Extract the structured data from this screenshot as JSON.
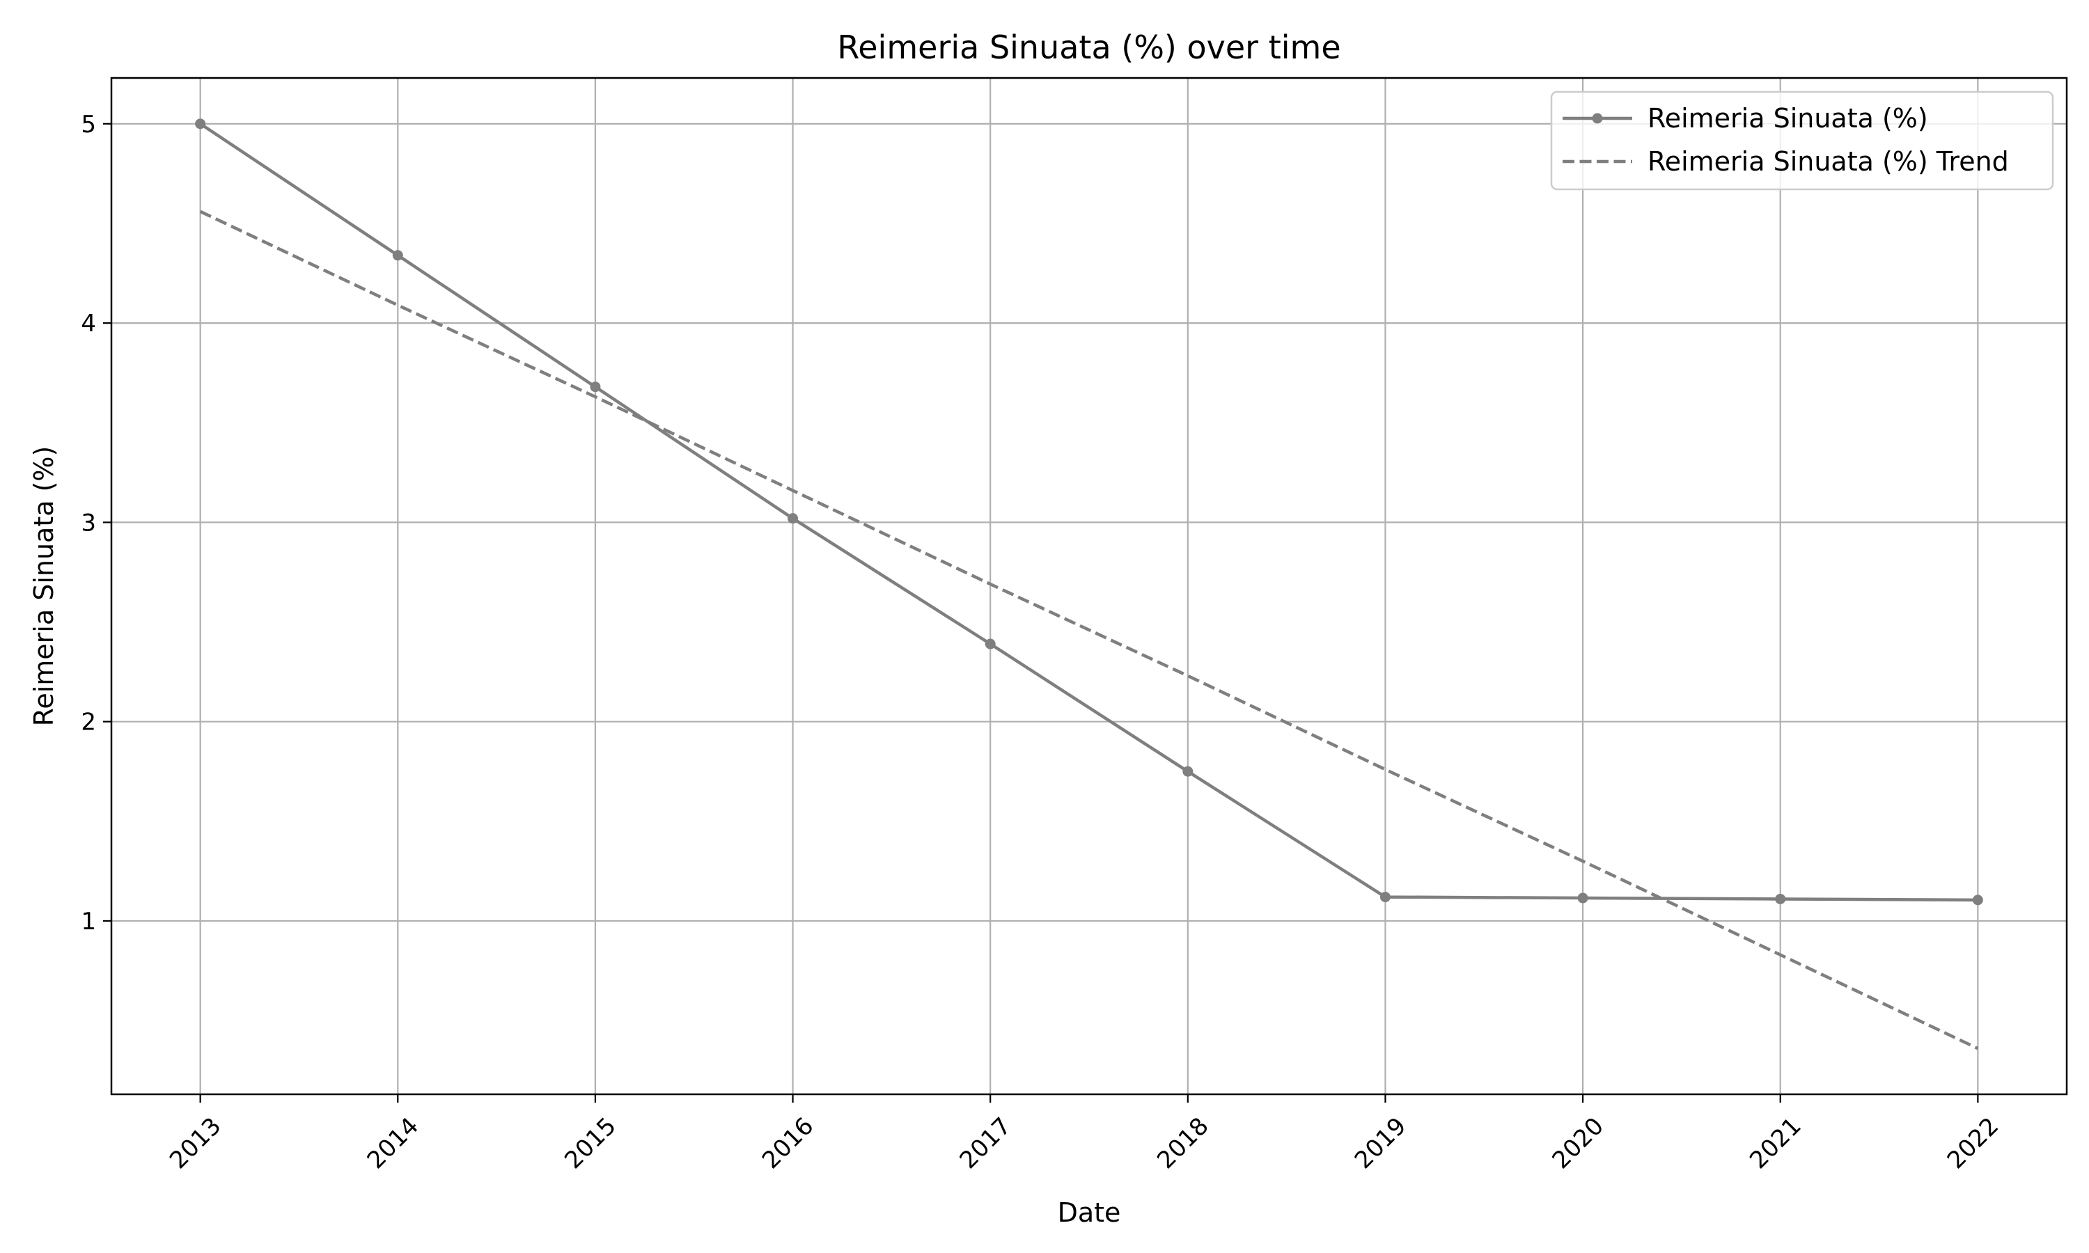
{
  "chart_data": {
    "type": "line",
    "title": "Reimeria Sinuata (%) over time",
    "xlabel": "Date",
    "ylabel": "Reimeria Sinuata (%)",
    "x": [
      "2013",
      "2014",
      "2015",
      "2016",
      "2017",
      "2018",
      "2019",
      "2020",
      "2021",
      "2022"
    ],
    "x_tick_labels": [
      "2013",
      "2014",
      "2015",
      "2016",
      "2017",
      "2018",
      "2019",
      "2020",
      "2021",
      "2022"
    ],
    "y_ticks": [
      1,
      2,
      3,
      4,
      5
    ],
    "y_tick_labels": [
      "1",
      "2",
      "3",
      "4",
      "5"
    ],
    "ylim": [
      0.13,
      5.23
    ],
    "grid": true,
    "legend_position": "top-right",
    "series": [
      {
        "name": "Reimeria Sinuata (%)",
        "style": "solid-with-markers",
        "color": "#7f7f7f",
        "values": [
          5.0,
          4.34,
          3.68,
          3.02,
          2.39,
          1.75,
          1.12,
          1.115,
          1.11,
          1.105
        ]
      },
      {
        "name": "Reimeria Sinuata (%) Trend",
        "style": "dashed",
        "color": "#7f7f7f",
        "values": [
          4.56,
          4.09,
          3.63,
          3.16,
          2.69,
          2.23,
          1.76,
          1.3,
          0.83,
          0.36
        ]
      }
    ]
  }
}
